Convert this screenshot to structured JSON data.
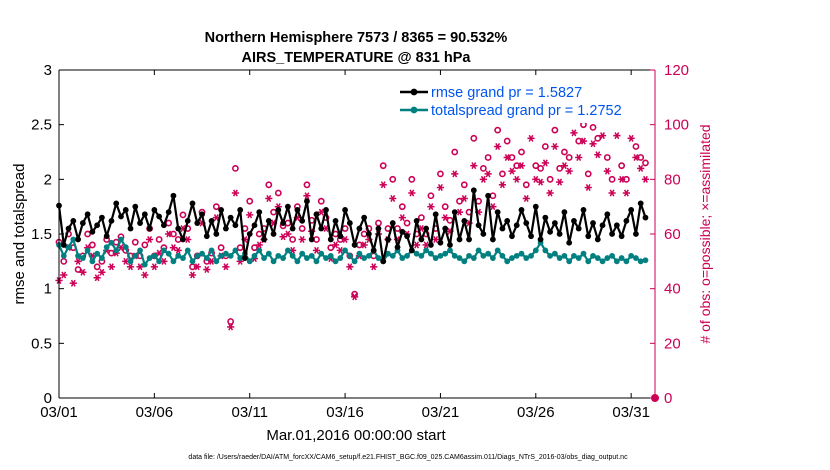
{
  "chart_data": {
    "type": "line",
    "title_line1": "Northern Hemisphere 7573 / 8365 = 90.532%",
    "title_line2": "AIRS_TEMPERATURE @ 831 hPa",
    "xlabel": "Mar.01,2016 00:00:00 start",
    "ylabel_left": "rmse and totalspread",
    "ylabel_right": "# of obs: o=possible; ×=assimilated",
    "x_range": [
      1,
      32.25
    ],
    "x_ticks": [
      1,
      6,
      11,
      16,
      21,
      26,
      31
    ],
    "x_tick_labels": [
      "03/01",
      "03/06",
      "03/11",
      "03/16",
      "03/21",
      "03/26",
      "03/31"
    ],
    "ylim_left": [
      0,
      3
    ],
    "y_ticks_left": [
      "0",
      "0.5",
      "1",
      "1.5",
      "2",
      "2.5",
      "3"
    ],
    "ylim_right": [
      0,
      120
    ],
    "y_ticks_right": [
      "0",
      "20",
      "40",
      "60",
      "80",
      "100",
      "120"
    ],
    "colors": {
      "rmse": "#000000",
      "spread": "#008080",
      "obs": "#cc0055",
      "legend_text": "#0055ee"
    },
    "legend": {
      "position": "top-right",
      "entries": [
        "rmse grand pr = 1.5827",
        "totalspread grand pr = 1.2752"
      ]
    },
    "series": [
      {
        "name": "rmse",
        "x": [
          1.0,
          1.25,
          1.5,
          1.75,
          2.0,
          2.25,
          2.5,
          2.75,
          3.0,
          3.25,
          3.5,
          3.75,
          4.0,
          4.25,
          4.5,
          4.75,
          5.0,
          5.25,
          5.5,
          5.75,
          6.0,
          6.25,
          6.5,
          6.75,
          7.0,
          7.25,
          7.5,
          7.75,
          8.0,
          8.25,
          8.5,
          8.75,
          9.0,
          9.25,
          9.5,
          9.75,
          10.0,
          10.25,
          10.5,
          10.75,
          11.0,
          11.25,
          11.5,
          11.75,
          12.0,
          12.25,
          12.5,
          12.75,
          13.0,
          13.25,
          13.5,
          13.75,
          14.0,
          14.25,
          14.5,
          14.75,
          15.0,
          15.25,
          15.5,
          15.75,
          16.0,
          16.25,
          16.5,
          16.75,
          17.0,
          17.25,
          17.5,
          17.75,
          18.0,
          18.25,
          18.5,
          18.75,
          19.0,
          19.25,
          19.5,
          19.75,
          20.0,
          20.25,
          20.5,
          20.75,
          21.0,
          21.25,
          21.5,
          21.75,
          22.0,
          22.25,
          22.5,
          22.75,
          23.0,
          23.25,
          23.5,
          23.75,
          24.0,
          24.25,
          24.5,
          24.75,
          25.0,
          25.25,
          25.5,
          25.75,
          26.0,
          26.25,
          26.5,
          26.75,
          27.0,
          27.25,
          27.5,
          27.75,
          28.0,
          28.25,
          28.5,
          28.75,
          29.0,
          29.25,
          29.5,
          29.75,
          30.0,
          30.25,
          30.5,
          30.75,
          31.0,
          31.25,
          31.5,
          31.75
        ],
        "values": [
          1.76,
          1.4,
          1.55,
          1.62,
          1.45,
          1.6,
          1.68,
          1.52,
          1.58,
          1.65,
          1.48,
          1.62,
          1.78,
          1.66,
          1.72,
          1.55,
          1.75,
          1.6,
          1.68,
          1.55,
          1.72,
          1.66,
          1.58,
          1.7,
          1.85,
          1.55,
          1.45,
          1.62,
          1.78,
          1.6,
          1.68,
          1.48,
          1.62,
          1.5,
          1.72,
          1.55,
          1.65,
          1.58,
          1.72,
          1.28,
          1.5,
          1.58,
          1.7,
          1.45,
          1.62,
          1.5,
          1.72,
          1.6,
          1.75,
          1.55,
          1.72,
          1.62,
          1.8,
          1.45,
          1.68,
          1.55,
          1.72,
          1.45,
          1.62,
          1.48,
          1.72,
          1.6,
          1.4,
          1.55,
          1.65,
          1.5,
          1.35,
          1.55,
          1.25,
          1.45,
          1.6,
          1.38,
          1.52,
          1.48,
          1.35,
          1.62,
          1.45,
          1.55,
          1.4,
          1.68,
          1.42,
          1.55,
          1.4,
          1.7,
          1.45,
          1.62,
          1.45,
          1.9,
          1.58,
          1.5,
          1.85,
          1.45,
          1.7,
          1.55,
          1.62,
          1.48,
          1.58,
          1.72,
          1.6,
          1.48,
          1.75,
          1.45,
          1.65,
          1.52,
          1.6,
          1.5,
          1.7,
          1.42,
          1.62,
          1.55,
          1.72,
          1.48,
          1.6,
          1.45,
          1.58,
          1.68,
          1.5,
          1.58,
          1.48,
          1.62,
          1.72,
          1.5,
          1.78,
          1.65
        ],
        "grand": 1.5827
      },
      {
        "name": "totalspread",
        "x": [
          1.0,
          1.25,
          1.5,
          1.75,
          2.0,
          2.25,
          2.5,
          2.75,
          3.0,
          3.25,
          3.5,
          3.75,
          4.0,
          4.25,
          4.5,
          4.75,
          5.0,
          5.25,
          5.5,
          5.75,
          6.0,
          6.25,
          6.5,
          6.75,
          7.0,
          7.25,
          7.5,
          7.75,
          8.0,
          8.25,
          8.5,
          8.75,
          9.0,
          9.25,
          9.5,
          9.75,
          10.0,
          10.25,
          10.5,
          10.75,
          11.0,
          11.25,
          11.5,
          11.75,
          12.0,
          12.25,
          12.5,
          12.75,
          13.0,
          13.25,
          13.5,
          13.75,
          14.0,
          14.25,
          14.5,
          14.75,
          15.0,
          15.25,
          15.5,
          15.75,
          16.0,
          16.25,
          16.5,
          16.75,
          17.0,
          17.25,
          17.5,
          17.75,
          18.0,
          18.25,
          18.5,
          18.75,
          19.0,
          19.25,
          19.5,
          19.75,
          20.0,
          20.25,
          20.5,
          20.75,
          21.0,
          21.25,
          21.5,
          21.75,
          22.0,
          22.25,
          22.5,
          22.75,
          23.0,
          23.25,
          23.5,
          23.75,
          24.0,
          24.25,
          24.5,
          24.75,
          25.0,
          25.25,
          25.5,
          25.75,
          26.0,
          26.25,
          26.5,
          26.75,
          27.0,
          27.25,
          27.5,
          27.75,
          28.0,
          28.25,
          28.5,
          28.75,
          29.0,
          29.25,
          29.5,
          29.75,
          30.0,
          30.25,
          30.5,
          30.75,
          31.0,
          31.25,
          31.5,
          31.75
        ],
        "values": [
          1.4,
          1.3,
          1.38,
          1.45,
          1.3,
          1.28,
          1.35,
          1.25,
          1.32,
          1.28,
          1.38,
          1.42,
          1.35,
          1.45,
          1.38,
          1.25,
          1.3,
          1.35,
          1.22,
          1.28,
          1.3,
          1.25,
          1.35,
          1.32,
          1.25,
          1.3,
          1.28,
          1.35,
          1.25,
          1.3,
          1.32,
          1.28,
          1.35,
          1.25,
          1.3,
          1.32,
          1.3,
          1.35,
          1.28,
          1.32,
          1.25,
          1.3,
          1.35,
          1.28,
          1.32,
          1.25,
          1.3,
          1.28,
          1.35,
          1.3,
          1.25,
          1.32,
          1.28,
          1.3,
          1.25,
          1.32,
          1.28,
          1.3,
          1.25,
          1.28,
          1.35,
          1.3,
          1.25,
          1.32,
          1.28,
          1.3,
          1.35,
          1.28,
          1.25,
          1.32,
          1.3,
          1.35,
          1.28,
          1.3,
          1.35,
          1.32,
          1.3,
          1.35,
          1.32,
          1.28,
          1.3,
          1.32,
          1.35,
          1.3,
          1.28,
          1.25,
          1.3,
          1.28,
          1.35,
          1.3,
          1.32,
          1.28,
          1.35,
          1.3,
          1.25,
          1.28,
          1.3,
          1.32,
          1.28,
          1.3,
          1.35,
          1.42,
          1.35,
          1.3,
          1.32,
          1.28,
          1.3,
          1.25,
          1.3,
          1.28,
          1.32,
          1.25,
          1.3,
          1.28,
          1.25,
          1.28,
          1.3,
          1.25,
          1.28,
          1.25,
          1.3,
          1.28,
          1.25,
          1.26
        ],
        "grand": 1.2752
      },
      {
        "name": "obs_possible",
        "axis": "right",
        "x": [
          1.0,
          1.25,
          1.5,
          1.75,
          2.0,
          2.25,
          2.5,
          2.75,
          3.0,
          3.25,
          3.5,
          3.75,
          4.0,
          4.25,
          4.5,
          4.75,
          5.0,
          5.25,
          5.5,
          5.75,
          6.0,
          6.25,
          6.5,
          6.75,
          7.0,
          7.25,
          7.5,
          7.75,
          8.0,
          8.25,
          8.5,
          8.75,
          9.0,
          9.25,
          9.5,
          9.75,
          10.0,
          10.25,
          10.5,
          10.75,
          11.0,
          11.25,
          11.5,
          11.75,
          12.0,
          12.25,
          12.5,
          12.75,
          13.0,
          13.25,
          13.5,
          13.75,
          14.0,
          14.25,
          14.5,
          14.75,
          15.0,
          15.25,
          15.5,
          15.75,
          16.0,
          16.25,
          16.5,
          16.75,
          17.0,
          17.25,
          17.5,
          17.75,
          18.0,
          18.25,
          18.5,
          18.75,
          19.0,
          19.25,
          19.5,
          19.75,
          20.0,
          20.25,
          20.5,
          20.75,
          21.0,
          21.25,
          21.5,
          21.75,
          22.0,
          22.25,
          22.5,
          22.75,
          23.0,
          23.25,
          23.5,
          23.75,
          24.0,
          24.25,
          24.5,
          24.75,
          25.0,
          25.25,
          25.5,
          25.75,
          26.0,
          26.25,
          26.5,
          26.75,
          27.0,
          27.25,
          27.5,
          27.75,
          28.0,
          28.25,
          28.5,
          28.75,
          29.0,
          29.25,
          29.5,
          29.75,
          30.0,
          30.25,
          30.5,
          30.75,
          31.0,
          31.25,
          31.5,
          31.75
        ],
        "values": [
          57,
          50,
          60,
          55,
          47,
          52,
          60,
          56,
          48,
          50,
          58,
          53,
          57,
          59,
          54,
          52,
          57,
          52,
          56,
          62,
          52,
          58,
          55,
          64,
          60,
          58,
          67,
          62,
          48,
          52,
          68,
          50,
          53,
          70,
          55,
          52,
          28,
          84,
          55,
          62,
          72,
          55,
          60,
          62,
          78,
          68,
          75,
          63,
          64,
          58,
          70,
          62,
          78,
          65,
          58,
          72,
          66,
          55,
          60,
          58,
          62,
          52,
          38,
          56,
          60,
          62,
          52,
          64,
          85,
          62,
          80,
          62,
          70,
          64,
          80,
          60,
          66,
          60,
          74,
          62,
          82,
          70,
          65,
          90,
          72,
          78,
          68,
          95,
          72,
          84,
          88,
          74,
          98,
          82,
          94,
          88,
          85,
          90,
          78,
          104,
          85,
          84,
          92,
          80,
          98,
          84,
          90,
          88,
          105,
          94,
          100,
          82,
          99,
          95,
          105,
          88,
          80,
          102,
          85,
          80,
          102,
          92,
          88,
          86
        ],
        "marker": "circle"
      },
      {
        "name": "obs_assimilated",
        "axis": "right",
        "x": [
          1.0,
          1.25,
          1.5,
          1.75,
          2.0,
          2.25,
          2.5,
          2.75,
          3.0,
          3.25,
          3.5,
          3.75,
          4.0,
          4.25,
          4.5,
          4.75,
          5.0,
          5.25,
          5.5,
          5.75,
          6.0,
          6.25,
          6.5,
          6.75,
          7.0,
          7.25,
          7.5,
          7.75,
          8.0,
          8.25,
          8.5,
          8.75,
          9.0,
          9.25,
          9.5,
          9.75,
          10.0,
          10.25,
          10.5,
          10.75,
          11.0,
          11.25,
          11.5,
          11.75,
          12.0,
          12.25,
          12.5,
          12.75,
          13.0,
          13.25,
          13.5,
          13.75,
          14.0,
          14.25,
          14.5,
          14.75,
          15.0,
          15.25,
          15.5,
          15.75,
          16.0,
          16.25,
          16.5,
          16.75,
          17.0,
          17.25,
          17.5,
          17.75,
          18.0,
          18.25,
          18.5,
          18.75,
          19.0,
          19.25,
          19.5,
          19.75,
          20.0,
          20.25,
          20.5,
          20.75,
          21.0,
          21.25,
          21.5,
          21.75,
          22.0,
          22.25,
          22.5,
          22.75,
          23.0,
          23.25,
          23.5,
          23.75,
          24.0,
          24.25,
          24.5,
          24.75,
          25.0,
          25.25,
          25.5,
          25.75,
          26.0,
          26.25,
          26.5,
          26.75,
          27.0,
          27.25,
          27.5,
          27.75,
          28.0,
          28.25,
          28.5,
          28.75,
          29.0,
          29.25,
          29.5,
          29.75,
          30.0,
          30.25,
          30.5,
          30.75,
          31.0,
          31.25,
          31.5,
          31.75
        ],
        "values": [
          43,
          45,
          55,
          42,
          50,
          46,
          55,
          52,
          44,
          46,
          54,
          48,
          53,
          55,
          50,
          48,
          52,
          48,
          45,
          58,
          48,
          53,
          50,
          60,
          55,
          54,
          62,
          58,
          45,
          48,
          64,
          47,
          50,
          66,
          52,
          48,
          26,
          75,
          50,
          58,
          67,
          51,
          56,
          58,
          73,
          64,
          70,
          59,
          60,
          54,
          66,
          58,
          74,
          61,
          54,
          68,
          62,
          51,
          56,
          54,
          58,
          48,
          37,
          52,
          56,
          58,
          48,
          60,
          78,
          58,
          73,
          58,
          66,
          60,
          75,
          56,
          62,
          56,
          70,
          58,
          77,
          66,
          61,
          82,
          68,
          73,
          64,
          85,
          68,
          80,
          82,
          70,
          92,
          78,
          88,
          83,
          80,
          85,
          73,
          95,
          80,
          79,
          86,
          75,
          92,
          79,
          85,
          83,
          97,
          88,
          94,
          77,
          93,
          89,
          96,
          83,
          75,
          96,
          80,
          75,
          95,
          88,
          84,
          80
        ],
        "marker": "asterisk"
      }
    ],
    "footer": "data file: /Users/raeder/DAI/ATM_forcXX/CAM6_setup/f.e21.FHIST_BGC.f09_025.CAM6assim.011/Diags_NTrS_2016-03/obs_diag_output.nc"
  }
}
